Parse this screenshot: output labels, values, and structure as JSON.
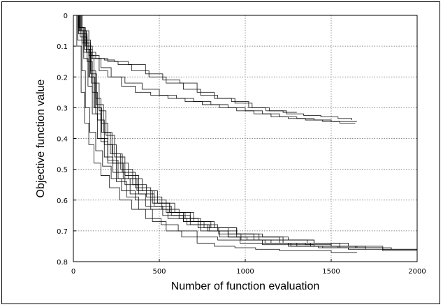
{
  "chart_data": {
    "type": "line",
    "title": "",
    "xlabel": "Number of function evaluation",
    "ylabel": "Objective function value",
    "xlim": [
      0,
      2000
    ],
    "ylim": [
      0,
      0.8
    ],
    "y_axis_inverted": true,
    "grid": true,
    "legend": "none",
    "x_ticks": [
      "0",
      "500",
      "1000",
      "1500",
      "2000"
    ],
    "y_ticks": [
      "0",
      "0.1",
      "0.2",
      "0.3",
      "0.4",
      "0.5",
      "0.6",
      "0.7",
      "0.8"
    ],
    "line_color": "#000000",
    "series": [
      {
        "x": [
          0,
          30,
          60,
          90,
          130,
          180,
          240,
          320,
          420,
          520,
          620,
          720,
          820,
          920,
          1020,
          1120,
          1220,
          1300
        ],
        "values": [
          0,
          0.04,
          0.09,
          0.12,
          0.14,
          0.145,
          0.15,
          0.16,
          0.19,
          0.21,
          0.22,
          0.25,
          0.27,
          0.28,
          0.3,
          0.31,
          0.315,
          0.315
        ]
      },
      {
        "x": [
          0,
          40,
          80,
          110,
          150,
          200,
          260,
          340,
          440,
          540,
          640,
          740,
          840,
          940,
          1040,
          1140,
          1240,
          1340,
          1440,
          1540,
          1620
        ],
        "values": [
          0,
          0.06,
          0.11,
          0.13,
          0.14,
          0.15,
          0.16,
          0.18,
          0.2,
          0.22,
          0.24,
          0.26,
          0.27,
          0.285,
          0.3,
          0.31,
          0.32,
          0.325,
          0.33,
          0.335,
          0.34
        ]
      },
      {
        "x": [
          0,
          35,
          75,
          110,
          160,
          220,
          300,
          400,
          500,
          600,
          700,
          800,
          900,
          1000,
          1100,
          1200,
          1300,
          1400,
          1500,
          1600,
          1650
        ],
        "values": [
          0,
          0.05,
          0.1,
          0.14,
          0.17,
          0.2,
          0.22,
          0.24,
          0.26,
          0.27,
          0.28,
          0.29,
          0.3,
          0.31,
          0.32,
          0.33,
          0.335,
          0.34,
          0.345,
          0.345,
          0.345
        ]
      },
      {
        "x": [
          0,
          50,
          100,
          150,
          200,
          280,
          360,
          450,
          550,
          650,
          750,
          850,
          950,
          1050,
          1150,
          1250,
          1350,
          1450,
          1550,
          1640
        ],
        "values": [
          0,
          0.08,
          0.14,
          0.18,
          0.2,
          0.23,
          0.25,
          0.26,
          0.27,
          0.28,
          0.29,
          0.3,
          0.31,
          0.32,
          0.33,
          0.335,
          0.34,
          0.345,
          0.35,
          0.35
        ]
      },
      {
        "x": [
          0,
          30,
          60,
          90,
          120,
          160,
          200,
          260,
          330,
          420,
          520,
          640,
          760,
          900,
          1050,
          1200,
          1400,
          1600,
          1800,
          2000
        ],
        "values": [
          0,
          0.05,
          0.12,
          0.2,
          0.3,
          0.4,
          0.47,
          0.53,
          0.58,
          0.62,
          0.65,
          0.67,
          0.69,
          0.71,
          0.72,
          0.73,
          0.74,
          0.75,
          0.76,
          0.765
        ]
      },
      {
        "x": [
          0,
          40,
          80,
          110,
          140,
          180,
          230,
          290,
          370,
          460,
          560,
          680,
          800,
          950,
          1100,
          1250,
          1400,
          1550,
          1700,
          1850
        ],
        "values": [
          0,
          0.07,
          0.15,
          0.25,
          0.34,
          0.42,
          0.48,
          0.53,
          0.57,
          0.61,
          0.64,
          0.67,
          0.69,
          0.71,
          0.72,
          0.73,
          0.74,
          0.75,
          0.755,
          0.76
        ]
      },
      {
        "x": [
          0,
          25,
          50,
          70,
          95,
          130,
          170,
          220,
          280,
          360,
          450,
          550,
          660,
          780,
          900,
          1050,
          1200,
          1350,
          1500,
          1650,
          1800,
          2000
        ],
        "values": [
          0,
          0.08,
          0.18,
          0.3,
          0.38,
          0.44,
          0.49,
          0.53,
          0.57,
          0.6,
          0.63,
          0.66,
          0.68,
          0.7,
          0.72,
          0.73,
          0.74,
          0.745,
          0.75,
          0.755,
          0.76,
          0.765
        ]
      },
      {
        "x": [
          0,
          45,
          90,
          120,
          150,
          190,
          240,
          300,
          380,
          470,
          570,
          680,
          790,
          900,
          1010,
          1150,
          1300,
          1450,
          1600
        ],
        "values": [
          0,
          0.05,
          0.13,
          0.22,
          0.31,
          0.39,
          0.46,
          0.52,
          0.57,
          0.62,
          0.65,
          0.68,
          0.7,
          0.72,
          0.73,
          0.74,
          0.75,
          0.755,
          0.76
        ]
      },
      {
        "x": [
          0,
          35,
          70,
          100,
          135,
          175,
          225,
          285,
          360,
          450,
          540,
          640,
          740,
          850,
          970,
          1100,
          1250,
          1400,
          1550,
          1700
        ],
        "values": [
          0,
          0.04,
          0.1,
          0.19,
          0.29,
          0.38,
          0.45,
          0.51,
          0.56,
          0.6,
          0.64,
          0.67,
          0.7,
          0.72,
          0.73,
          0.74,
          0.745,
          0.75,
          0.755,
          0.755
        ]
      },
      {
        "x": [
          0,
          30,
          60,
          85,
          110,
          140,
          180,
          230,
          300,
          380,
          470,
          560,
          650,
          740,
          840,
          950,
          1080,
          1220,
          1380,
          1540,
          1700
        ],
        "values": [
          0,
          0.06,
          0.14,
          0.23,
          0.32,
          0.4,
          0.46,
          0.51,
          0.55,
          0.58,
          0.61,
          0.64,
          0.66,
          0.68,
          0.7,
          0.72,
          0.73,
          0.74,
          0.75,
          0.755,
          0.76
        ]
      },
      {
        "x": [
          0,
          50,
          100,
          130,
          160,
          200,
          250,
          320,
          400,
          490,
          590,
          700,
          820,
          950,
          1080,
          1220,
          1360,
          1500,
          1640
        ],
        "values": [
          0,
          0.09,
          0.18,
          0.27,
          0.35,
          0.42,
          0.48,
          0.53,
          0.57,
          0.61,
          0.64,
          0.67,
          0.69,
          0.71,
          0.72,
          0.73,
          0.74,
          0.75,
          0.755
        ]
      },
      {
        "x": [
          0,
          20,
          45,
          65,
          90,
          120,
          160,
          210,
          270,
          340,
          420,
          510,
          610,
          720,
          840,
          970,
          1100,
          1250,
          1400
        ],
        "values": [
          0,
          0.1,
          0.25,
          0.35,
          0.42,
          0.48,
          0.52,
          0.56,
          0.6,
          0.63,
          0.66,
          0.68,
          0.7,
          0.72,
          0.73,
          0.74,
          0.745,
          0.75,
          0.75
        ]
      },
      {
        "x": [
          0,
          40,
          75,
          105,
          130,
          160,
          200,
          250,
          310,
          380,
          460,
          540,
          630,
          720,
          820,
          940,
          1060,
          1200,
          1350,
          1500,
          1650
        ],
        "values": [
          0,
          0.05,
          0.12,
          0.22,
          0.32,
          0.41,
          0.48,
          0.54,
          0.59,
          0.63,
          0.67,
          0.7,
          0.72,
          0.74,
          0.75,
          0.755,
          0.76,
          0.765,
          0.765,
          0.77,
          0.77
        ]
      },
      {
        "x": [
          0,
          30,
          65,
          95,
          125,
          165,
          215,
          275,
          345,
          425,
          515,
          615,
          725,
          845,
          975,
          1115,
          1265,
          1425,
          1600,
          1800,
          2000
        ],
        "values": [
          0,
          0.04,
          0.11,
          0.2,
          0.3,
          0.38,
          0.45,
          0.5,
          0.55,
          0.59,
          0.63,
          0.66,
          0.69,
          0.71,
          0.73,
          0.74,
          0.75,
          0.755,
          0.76,
          0.765,
          0.77
        ]
      }
    ]
  }
}
